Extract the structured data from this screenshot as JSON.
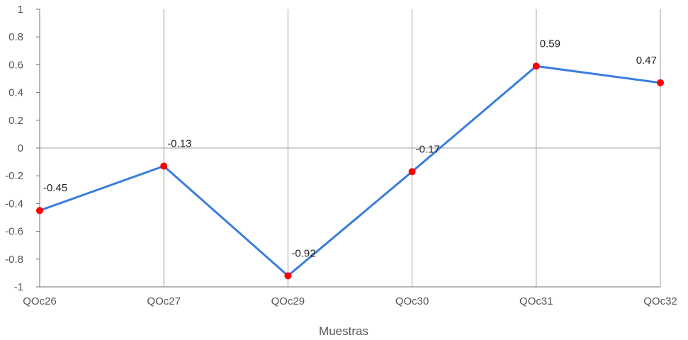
{
  "chart_data": {
    "type": "line",
    "categories": [
      "QOc26",
      "QOc27",
      "QOc29",
      "QOc30",
      "QOc31",
      "QOc32"
    ],
    "values": [
      -0.45,
      -0.13,
      -0.92,
      -0.17,
      0.59,
      0.47
    ],
    "data_labels": [
      "-0.45",
      "-0.13",
      "-0.92",
      "-0.17",
      "0.59",
      "0.47"
    ],
    "title": "",
    "xlabel": "Muestras",
    "ylabel": "",
    "ylim": [
      -1,
      1
    ],
    "yticks": [
      1,
      0.8,
      0.6,
      0.4,
      0.2,
      0,
      -0.2,
      -0.4,
      -0.6,
      -0.8,
      -1
    ],
    "ytick_labels": [
      "1",
      "0.8",
      "0.6",
      "0.4",
      "0.2",
      "0",
      "-0.2",
      "-0.4",
      "-0.6",
      "-0.8",
      "-1"
    ],
    "grid": true,
    "colors": {
      "line": "#3b7ddd",
      "marker": "#ff0000",
      "grid": "#a0a0a0",
      "axis": "#707070"
    }
  }
}
